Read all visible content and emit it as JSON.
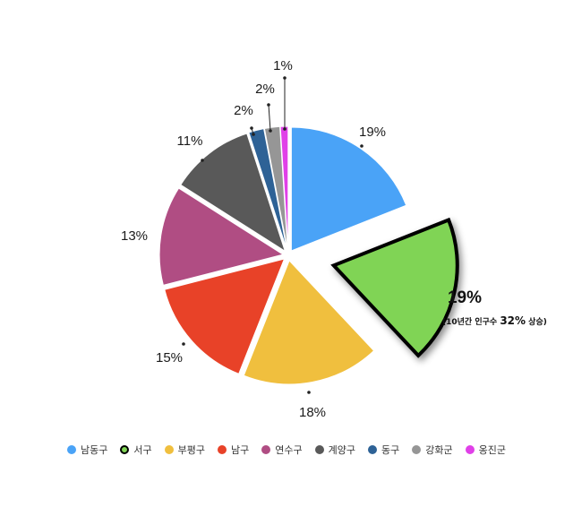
{
  "chart_data": {
    "type": "pie",
    "categories": [
      "남동구",
      "서구",
      "부평구",
      "남구",
      "연수구",
      "계양구",
      "동구",
      "강화군",
      "옹진군"
    ],
    "values": [
      19,
      19,
      18,
      15,
      13,
      11,
      2,
      2,
      1
    ],
    "labels": [
      "19%",
      "19%",
      "18%",
      "15%",
      "13%",
      "11%",
      "2%",
      "2%",
      "1%"
    ],
    "colors": [
      "#4AA3F7",
      "#80D455",
      "#F0BF3E",
      "#E84228",
      "#B04D83",
      "#595959",
      "#2E6296",
      "#969696",
      "#E040E8"
    ],
    "highlight_index": 1,
    "highlight_note_parts": [
      "(10년간 인구수 ",
      "32%",
      " 상승)"
    ],
    "legend_placement": "bottom"
  }
}
